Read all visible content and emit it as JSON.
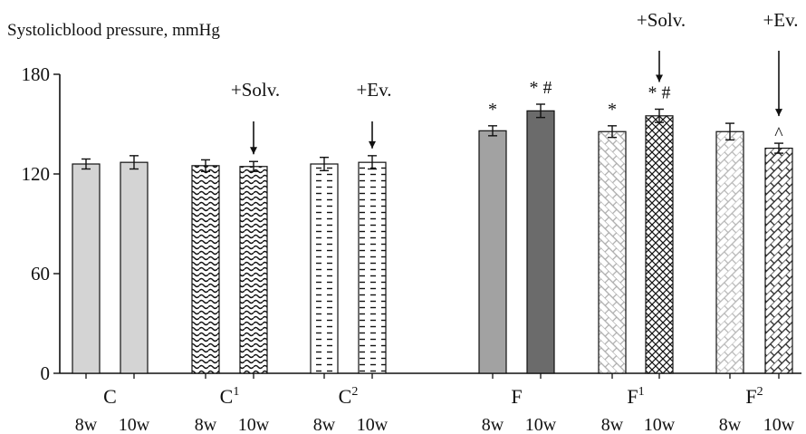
{
  "chart_data": {
    "type": "bar",
    "title": "",
    "ylabel": "Systolicblood pressure, mmHg",
    "xlabel": "",
    "ylim": [
      0,
      180
    ],
    "yticks": [
      "0",
      "60",
      "120",
      "180"
    ],
    "grid": false,
    "groups": [
      {
        "label": "C",
        "sup": "",
        "bars": [
          {
            "time": "8w",
            "value": 126,
            "err": 3,
            "pattern": "solid-light",
            "sig": "",
            "arrow": ""
          },
          {
            "time": "10w",
            "value": 127,
            "err": 4,
            "pattern": "solid-light",
            "sig": "",
            "arrow": ""
          }
        ]
      },
      {
        "label": "C",
        "sup": "1",
        "bars": [
          {
            "time": "8w",
            "value": 125,
            "err": 3.5,
            "pattern": "waves",
            "sig": "",
            "arrow": ""
          },
          {
            "time": "10w",
            "value": 124.5,
            "err": 3,
            "pattern": "waves",
            "sig": "",
            "arrow": "+Solv."
          }
        ]
      },
      {
        "label": "C",
        "sup": "2",
        "bars": [
          {
            "time": "8w",
            "value": 126,
            "err": 4,
            "pattern": "dashes",
            "sig": "",
            "arrow": ""
          },
          {
            "time": "10w",
            "value": 127,
            "err": 4,
            "pattern": "dashes",
            "sig": "",
            "arrow": "+Ev."
          }
        ]
      },
      {
        "label": "F",
        "sup": "",
        "bars": [
          {
            "time": "8w",
            "value": 146,
            "err": 3,
            "pattern": "solid-mid",
            "sig": "*",
            "arrow": ""
          },
          {
            "time": "10w",
            "value": 158,
            "err": 4,
            "pattern": "solid-dark",
            "sig": "* #",
            "arrow": ""
          }
        ]
      },
      {
        "label": "F",
        "sup": "1",
        "bars": [
          {
            "time": "8w",
            "value": 145.5,
            "err": 3.5,
            "pattern": "bricks-light",
            "sig": "*",
            "arrow": ""
          },
          {
            "time": "10w",
            "value": 155,
            "err": 4,
            "pattern": "crosshatch",
            "sig": "* #",
            "arrow": "+Solv."
          }
        ]
      },
      {
        "label": "F",
        "sup": "2",
        "bars": [
          {
            "time": "8w",
            "value": 145.5,
            "err": 5,
            "pattern": "diag-light",
            "sig": "",
            "arrow": ""
          },
          {
            "time": "10w",
            "value": 135.5,
            "err": 3,
            "pattern": "bricks-dark",
            "sig": "^",
            "arrow": "+Ev."
          }
        ]
      }
    ]
  }
}
